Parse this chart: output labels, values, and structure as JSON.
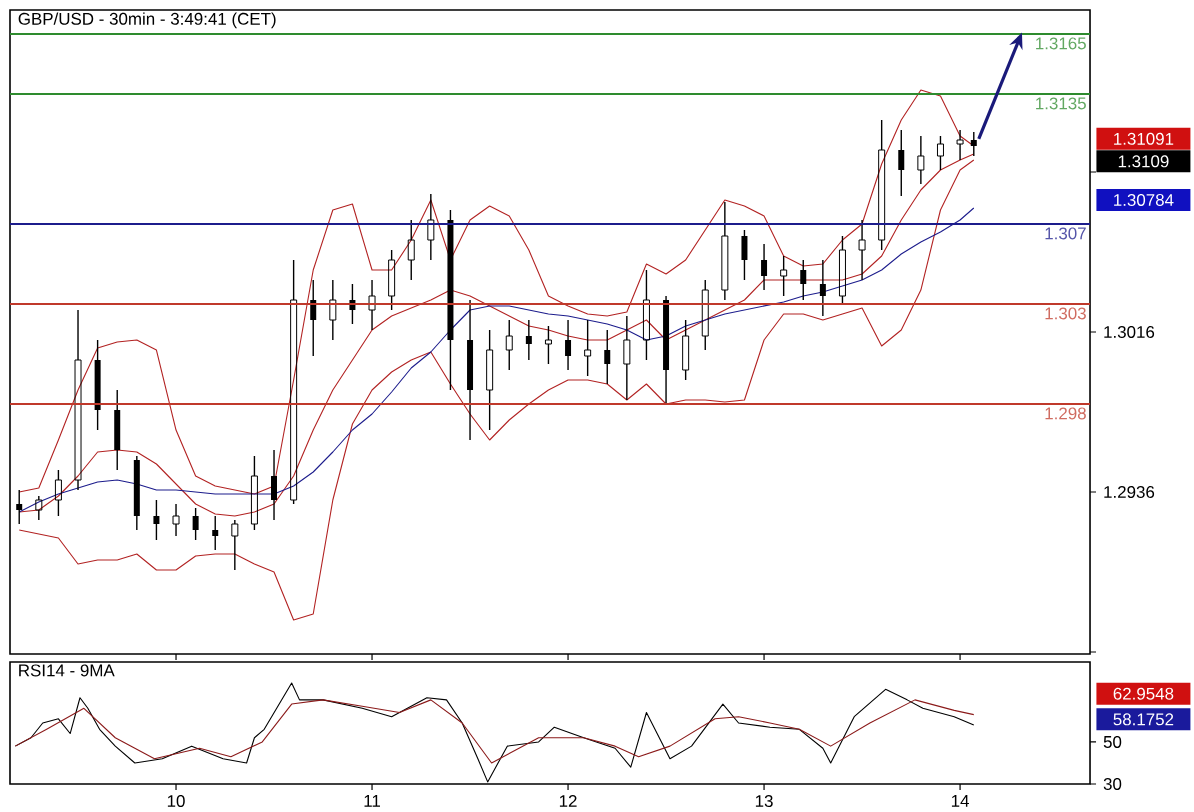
{
  "chart_data": [
    {
      "type": "candlestick",
      "title": "GBP/USD - 30min - 3:49:41 (CET)",
      "color": "#000000",
      "x": [
        9.2,
        9.3,
        9.4,
        9.5,
        9.6,
        9.7,
        9.8,
        9.9,
        10.0,
        10.1,
        10.2,
        10.3,
        10.4,
        10.5,
        10.6,
        10.7,
        10.8,
        10.9,
        11.0,
        11.1,
        11.2,
        11.3,
        11.4,
        11.5,
        11.6,
        11.7,
        11.8,
        11.9,
        12.0,
        12.1,
        12.2,
        12.3,
        12.4,
        12.5,
        12.6,
        12.7,
        12.8,
        12.9,
        13.0,
        13.1,
        13.2,
        13.3,
        13.4,
        13.5,
        13.6,
        13.7,
        13.8,
        13.9,
        14.0,
        14.07
      ],
      "ohlc": [
        [
          1.293,
          1.2937,
          1.292,
          1.2927
        ],
        [
          1.2927,
          1.2934,
          1.2922,
          1.2932
        ],
        [
          1.2932,
          1.2947,
          1.2924,
          1.2942
        ],
        [
          1.2942,
          1.3027,
          1.2937,
          1.3002
        ],
        [
          1.3002,
          1.3012,
          1.2967,
          1.2977
        ],
        [
          1.2977,
          1.2987,
          1.2947,
          1.2957
        ],
        [
          1.2952,
          1.2954,
          1.2917,
          1.2924
        ],
        [
          1.2924,
          1.2932,
          1.2912,
          1.292
        ],
        [
          1.292,
          1.293,
          1.2914,
          1.2924
        ],
        [
          1.2924,
          1.2928,
          1.2912,
          1.2917
        ],
        [
          1.2917,
          1.2924,
          1.2907,
          1.2914
        ],
        [
          1.2914,
          1.2922,
          1.2897,
          1.292
        ],
        [
          1.292,
          1.2954,
          1.2917,
          1.2944
        ],
        [
          1.2944,
          1.2957,
          1.2922,
          1.2932
        ],
        [
          1.2932,
          1.3052,
          1.293,
          1.3032
        ],
        [
          1.3032,
          1.3042,
          1.3004,
          1.3022
        ],
        [
          1.3022,
          1.3042,
          1.3012,
          1.3032
        ],
        [
          1.3032,
          1.304,
          1.302,
          1.3027
        ],
        [
          1.3027,
          1.3042,
          1.3017,
          1.3034
        ],
        [
          1.3034,
          1.3057,
          1.3027,
          1.3052
        ],
        [
          1.3052,
          1.3072,
          1.3042,
          1.3062
        ],
        [
          1.3062,
          1.3085,
          1.3052,
          1.3072
        ],
        [
          1.3072,
          1.3077,
          1.2987,
          1.3012
        ],
        [
          1.3012,
          1.3032,
          1.2962,
          1.2987
        ],
        [
          1.2987,
          1.3017,
          1.2967,
          1.3007
        ],
        [
          1.3007,
          1.3022,
          1.2997,
          1.3014
        ],
        [
          1.3014,
          1.3022,
          1.3002,
          1.301
        ],
        [
          1.301,
          1.3019,
          1.3,
          1.3012
        ],
        [
          1.3012,
          1.3022,
          1.2997,
          1.3004
        ],
        [
          1.3004,
          1.3022,
          1.2994,
          1.3007
        ],
        [
          1.3007,
          1.3017,
          1.299,
          1.3
        ],
        [
          1.3,
          1.3024,
          1.2982,
          1.3012
        ],
        [
          1.3012,
          1.3047,
          1.3002,
          1.3032
        ],
        [
          1.3032,
          1.3034,
          1.298,
          1.2997
        ],
        [
          1.2997,
          1.3022,
          1.2992,
          1.3014
        ],
        [
          1.3014,
          1.3042,
          1.3007,
          1.3037
        ],
        [
          1.3037,
          1.3081,
          1.3032,
          1.3064
        ],
        [
          1.3064,
          1.3067,
          1.3042,
          1.3052
        ],
        [
          1.3052,
          1.306,
          1.3037,
          1.3044
        ],
        [
          1.3044,
          1.3054,
          1.3034,
          1.3047
        ],
        [
          1.3047,
          1.3052,
          1.3032,
          1.304
        ],
        [
          1.304,
          1.3052,
          1.3024,
          1.3034
        ],
        [
          1.3034,
          1.3064,
          1.303,
          1.3057
        ],
        [
          1.3057,
          1.3072,
          1.3042,
          1.3062
        ],
        [
          1.3062,
          1.3122,
          1.3057,
          1.3107
        ],
        [
          1.3107,
          1.3117,
          1.3084,
          1.3097
        ],
        [
          1.3097,
          1.3114,
          1.309,
          1.3104
        ],
        [
          1.3104,
          1.3114,
          1.3097,
          1.311
        ],
        [
          1.311,
          1.3117,
          1.3102,
          1.3112
        ],
        [
          1.3112,
          1.3116,
          1.3104,
          1.3109
        ]
      ],
      "series": [
        {
          "type": "line",
          "color": "#b22222",
          "values": [
            1.2936,
            1.2938,
            1.2962,
            1.2987,
            1.3008,
            1.3011,
            1.3012,
            1.3007,
            1.2967,
            1.2944,
            1.2939,
            1.2937,
            1.2935,
            1.2939,
            1.2992,
            1.3047,
            1.3077,
            1.308,
            1.3047,
            1.3047,
            1.3062,
            1.3082,
            1.3052,
            1.3072,
            1.3079,
            1.3074,
            1.3057,
            1.3034,
            1.3029,
            1.3025,
            1.3024,
            1.3026,
            1.305,
            1.3045,
            1.3052,
            1.3067,
            1.3082,
            1.3079,
            1.3074,
            1.3054,
            1.3049,
            1.305,
            1.3062,
            1.307,
            1.31,
            1.3122,
            1.3137,
            1.3134,
            1.3114,
            1.3109
          ]
        },
        {
          "type": "line",
          "color": "#b22222",
          "values": [
            1.2917,
            1.2915,
            1.2913,
            1.29,
            1.2902,
            1.2902,
            1.2905,
            1.2897,
            1.2897,
            1.2904,
            1.2905,
            1.2905,
            1.29,
            1.2896,
            1.2872,
            1.2875,
            1.2932,
            1.297,
            1.2987,
            1.2996,
            1.3002,
            1.3006,
            1.299,
            1.2975,
            1.2962,
            1.2972,
            1.298,
            1.2987,
            1.2992,
            1.2992,
            1.299,
            1.2982,
            1.299,
            1.298,
            1.2982,
            1.2982,
            1.2981,
            1.2982,
            1.3012,
            1.3025,
            1.3025,
            1.3022,
            1.3025,
            1.3028,
            1.3009,
            1.3017,
            1.3037,
            1.3077,
            1.3097,
            1.3102
          ]
        },
        {
          "type": "line",
          "color": "#b22222",
          "values": [
            1.2926,
            1.2927,
            1.2934,
            1.2944,
            1.2956,
            1.2957,
            1.2956,
            1.295,
            1.294,
            1.293,
            1.2925,
            1.2924,
            1.2926,
            1.293,
            1.2944,
            1.2967,
            1.2987,
            1.3002,
            1.3017,
            1.3024,
            1.3028,
            1.3032,
            1.3037,
            1.3034,
            1.3029,
            1.3024,
            1.3019,
            1.3017,
            1.3014,
            1.3012,
            1.3012,
            1.3017,
            1.3022,
            1.3012,
            1.3017,
            1.3022,
            1.3027,
            1.3032,
            1.3042,
            1.3042,
            1.3042,
            1.3042,
            1.3042,
            1.3045,
            1.3054,
            1.3072,
            1.3087,
            1.3097,
            1.3102,
            1.3105
          ]
        },
        {
          "type": "line",
          "color": "#1c1c8c",
          "values": [
            1.2926,
            1.2931,
            1.2935,
            1.2938,
            1.2941,
            1.2942,
            1.294,
            1.2937,
            1.2937,
            1.2936,
            1.2935,
            1.2935,
            1.2935,
            1.2935,
            1.2939,
            1.2946,
            1.2956,
            1.2967,
            1.2975,
            1.2986,
            1.2998,
            1.3006,
            1.3017,
            1.3027,
            1.3029,
            1.3029,
            1.3027,
            1.3025,
            1.3024,
            1.3022,
            1.302,
            1.3017,
            1.3012,
            1.3014,
            1.3019,
            1.3022,
            1.3025,
            1.3027,
            1.3029,
            1.3031,
            1.3034,
            1.3036,
            1.3039,
            1.3042,
            1.3047,
            1.3055,
            1.3061,
            1.3066,
            1.3072,
            1.3078
          ]
        }
      ],
      "xlim": [
        9.153,
        14.663
      ],
      "xticks": [
        10,
        11,
        12,
        13,
        14
      ],
      "ylim": [
        1.2855,
        1.3177
      ],
      "yticks": [
        {
          "value": 1.3096,
          "label": null
        },
        1.3016,
        1.2936,
        {
          "value": 1.2856,
          "label": null
        }
      ],
      "tick_labels": "y",
      "ref_lines": [
        {
          "axis": "y",
          "value": 1.3165,
          "label": "1.3165",
          "color": "#2e8b2e"
        },
        {
          "axis": "y",
          "value": 1.3135,
          "label": "1.3135",
          "color": "#2e8b2e"
        },
        {
          "axis": "y",
          "value": 1.307,
          "label": "1.307",
          "color": "#1c1c8c"
        },
        {
          "axis": "y",
          "value": 1.303,
          "label": "1.303",
          "color": "#c0392b"
        },
        {
          "axis": "y",
          "value": 1.298,
          "label": "1.298",
          "color": "#c0392b"
        }
      ],
      "annotations": [
        "1.31091",
        "1.3109",
        "1.30784"
      ]
    },
    {
      "type": "line",
      "title": "RSI14 - 9MA",
      "series": [
        {
          "color": "#000000",
          "x": [
            9.18,
            9.26,
            9.32,
            9.4,
            9.46,
            9.51,
            9.55,
            9.61,
            9.69,
            9.79,
            9.93,
            10.08,
            10.24,
            10.36,
            10.4,
            10.45,
            10.59,
            10.63,
            10.75,
            10.95,
            11.1,
            11.28,
            11.38,
            11.46,
            11.54,
            11.59,
            11.69,
            11.85,
            11.93,
            12.08,
            12.24,
            12.32,
            12.4,
            12.52,
            12.63,
            12.79,
            12.87,
            13.03,
            13.18,
            13.3,
            13.34,
            13.46,
            13.62,
            13.73,
            13.81,
            13.97,
            14.07
          ],
          "values": [
            48,
            52,
            59,
            61,
            54,
            71,
            66,
            56,
            48,
            40,
            42,
            48,
            42,
            40,
            52,
            56,
            78,
            70,
            70,
            66,
            62,
            71,
            70,
            59,
            42,
            31,
            48,
            50,
            57,
            52,
            47,
            38,
            64,
            42,
            48,
            68,
            59,
            57,
            56,
            47,
            40,
            62,
            75,
            70,
            66,
            62,
            58
          ]
        },
        {
          "color": "#8b1a1a",
          "x": [
            9.18,
            9.34,
            9.53,
            9.69,
            9.89,
            10.12,
            10.28,
            10.44,
            10.59,
            10.75,
            10.95,
            11.14,
            11.3,
            11.46,
            11.61,
            11.85,
            12.08,
            12.24,
            12.36,
            12.52,
            12.75,
            12.87,
            13.03,
            13.18,
            13.34,
            13.54,
            13.77,
            13.97,
            14.07
          ],
          "values": [
            48,
            56,
            66,
            52,
            42,
            47,
            43,
            50,
            68,
            70,
            67,
            64,
            70,
            59,
            40,
            52,
            52,
            48,
            43,
            48,
            61,
            62,
            59,
            56,
            48,
            59,
            70,
            65,
            63
          ]
        }
      ],
      "xlim": [
        9.153,
        14.663
      ],
      "xticks": [
        10,
        11,
        12,
        13,
        14
      ],
      "ylim": [
        30,
        88
      ],
      "yticks": [
        30,
        50
      ],
      "annotations": [
        "62.9548",
        "58.1752"
      ]
    }
  ]
}
